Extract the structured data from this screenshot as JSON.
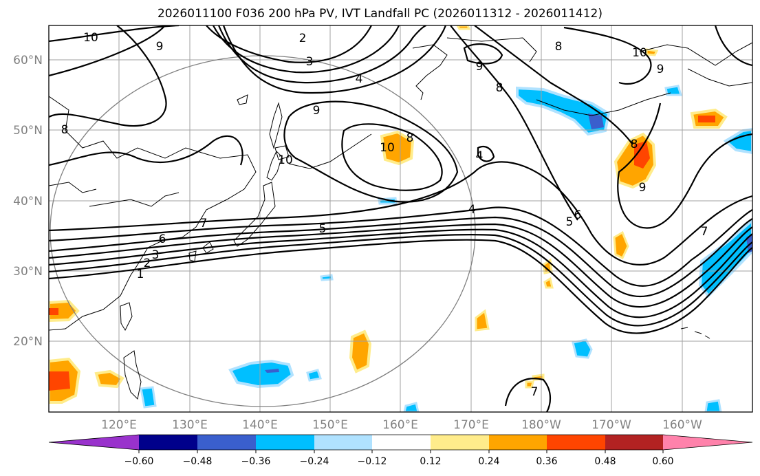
{
  "title": "2026011100 F036 200 hPa PV, IVT Landfall PC (2026011312 - 2026011412)",
  "lat_labels": [
    "60°N",
    "50°N",
    "40°N",
    "30°N",
    "20°N"
  ],
  "lon_labels": [
    "120°E",
    "130°E",
    "140°E",
    "150°E",
    "160°E",
    "170°E",
    "180°W",
    "170°W",
    "160°W"
  ],
  "contour_labels": [
    "10",
    "9",
    "2",
    "3",
    "4",
    "9",
    "10",
    "8",
    "9",
    "10",
    "9",
    "8",
    "8",
    "10",
    "8",
    "9",
    "7",
    "6",
    "5",
    "4",
    "7",
    "6",
    "3",
    "2",
    "1",
    "5",
    "4",
    "8",
    "7"
  ],
  "colorbar": {
    "ticks": [
      "−0.60",
      "−0.48",
      "−0.36",
      "−0.24",
      "−0.12",
      "0.12",
      "0.24",
      "0.36",
      "0.48",
      "0.60"
    ],
    "colors": [
      "#9932cc",
      "#00008b",
      "#3a5fcd",
      "#00bfff",
      "#b0e2ff",
      "#ffffff",
      "#ffec8b",
      "#ffa500",
      "#ff4500",
      "#b22222",
      "#ff82ab"
    ]
  }
}
